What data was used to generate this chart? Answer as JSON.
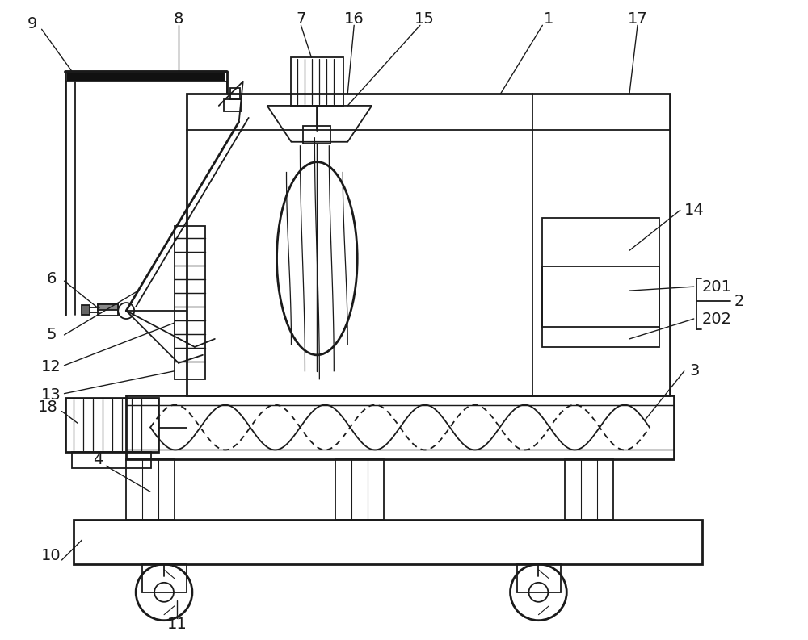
{
  "fig_width": 10.0,
  "fig_height": 7.93,
  "bg_color": "#ffffff",
  "line_color": "#1a1a1a",
  "lw": 1.3,
  "lw2": 2.0,
  "lw3": 2.8,
  "fs": 14
}
